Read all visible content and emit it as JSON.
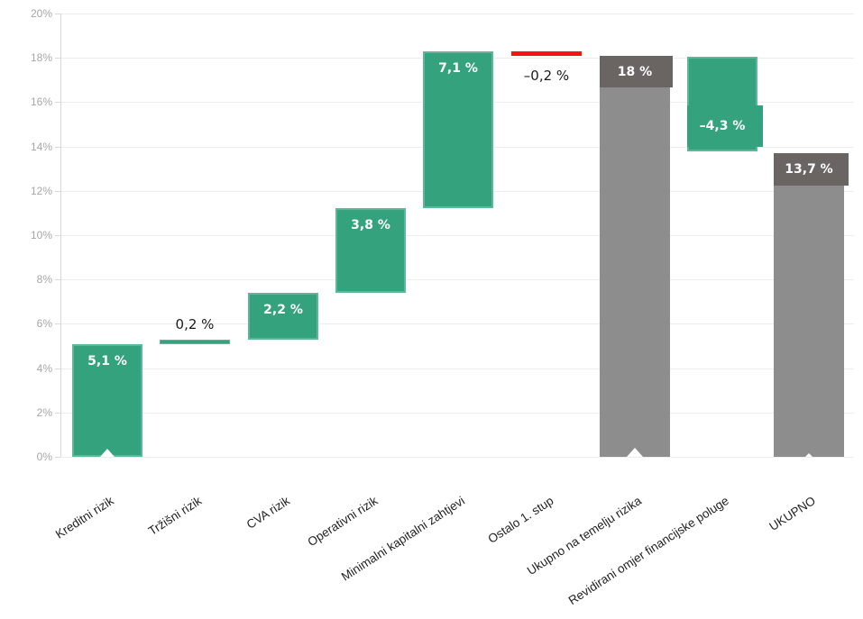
{
  "chart_data": {
    "type": "bar",
    "subtype": "waterfall",
    "title": "",
    "xlabel": "",
    "ylabel": "",
    "ylim": [
      0,
      20
    ],
    "ytick_step": 2,
    "ytick_labels": [
      "0%",
      "2%",
      "4%",
      "6%",
      "8%",
      "10%",
      "12%",
      "14%",
      "16%",
      "18%",
      "20%"
    ],
    "grid": true,
    "legend": null,
    "categories": [
      "Kreditni rizik",
      "Tržišni rizik",
      "CVA rizik",
      "Operativni rizik",
      "Minimalni kapitalni zahtjevi",
      "Ostalo 1. stup",
      "Ukupno na temelju rizika",
      "Revidirani omjer financijske poluge",
      "UKUPNO"
    ],
    "bars": [
      {
        "category": "Kreditni rizik",
        "value": 5.1,
        "value_label": "5,1 %",
        "start": 0,
        "end": 5.1,
        "kind": "delta",
        "color": "green",
        "label_style": "inside-top",
        "notch": 16
      },
      {
        "category": "Tržišni rizik",
        "value": 0.2,
        "value_label": "0,2 %",
        "start": 5.1,
        "end": 5.3,
        "kind": "delta-thin",
        "color": "green",
        "label_style": "above"
      },
      {
        "category": "CVA rizik",
        "value": 2.2,
        "value_label": "2,2 %",
        "start": 5.3,
        "end": 7.4,
        "kind": "delta",
        "color": "green",
        "label_style": "inside-top"
      },
      {
        "category": "Operativni rizik",
        "value": 3.8,
        "value_label": "3,8 %",
        "start": 7.4,
        "end": 11.2,
        "kind": "delta",
        "color": "green",
        "label_style": "inside-top"
      },
      {
        "category": "Minimalni kapitalni zahtjevi",
        "value": 7.1,
        "value_label": "7,1 %",
        "start": 11.2,
        "end": 18.3,
        "kind": "delta",
        "color": "green",
        "label_style": "inside-top"
      },
      {
        "category": "Ostalo 1. stup",
        "value": -0.2,
        "value_label": "–0,2 %",
        "start": 18.3,
        "end": 18.1,
        "kind": "line",
        "color": "red",
        "label_style": "below"
      },
      {
        "category": "Ukupno na temelju rizika",
        "value": 18,
        "value_label": "18 %",
        "start": 0,
        "end": 18.1,
        "kind": "total",
        "color": "gray",
        "cap_pct": 1.45,
        "cap_overhang": 3,
        "label_style": "cap",
        "notch": 18
      },
      {
        "category": "Revidirani omjer financijske poluge",
        "value": -4.3,
        "value_label": "–4,3 %",
        "start": 18.05,
        "end": 13.8,
        "kind": "delta",
        "color": "green",
        "label_style": "callout",
        "callout": {
          "top": 15.85,
          "bottom": 13.98,
          "overhang": 6
        }
      },
      {
        "category": "UKUPNO",
        "value": 13.7,
        "value_label": "13,7 %",
        "start": 0,
        "end": 13.7,
        "kind": "total",
        "color": "gray",
        "cap_pct": 1.45,
        "cap_overhang": 5,
        "label_style": "cap",
        "notch": 8
      }
    ],
    "colors": {
      "increase_bar": "#35a27e",
      "increase_bar_border": "#5fb79b",
      "total_bar": "#8e8d8d",
      "total_bar_cap": "#6a6563",
      "negative_line": "#fb1210",
      "gridline": "#ededed",
      "axis_line": "#d9d9d9",
      "ytick_text": "#a6a6a6",
      "xtick_text": "#1f1f1f",
      "value_label_inside": "#ffffff",
      "value_label_outside": "#1a1a1a"
    }
  }
}
